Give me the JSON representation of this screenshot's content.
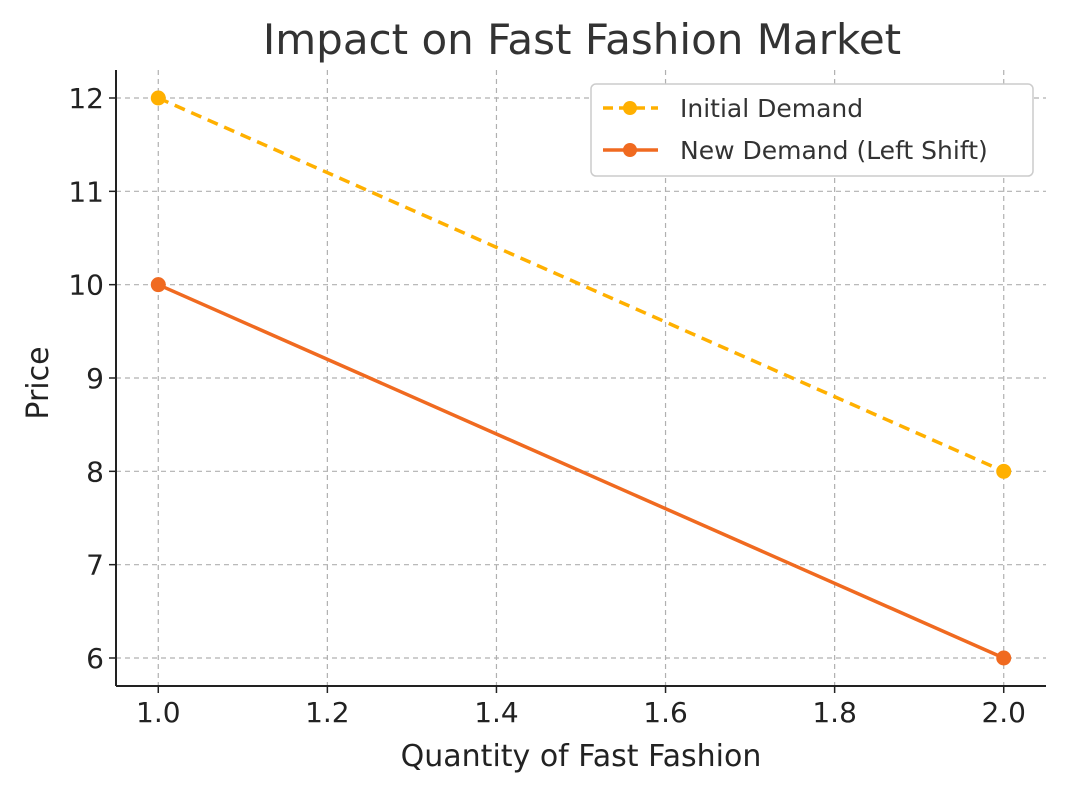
{
  "chart_data": {
    "type": "line",
    "title": "Impact on Fast Fashion Market",
    "xlabel": "Quantity of Fast Fashion",
    "ylabel": "Price",
    "xlim": [
      0.95,
      2.05
    ],
    "ylim": [
      5.7,
      12.3
    ],
    "xticks": [
      1.0,
      1.2,
      1.4,
      1.6,
      1.8,
      2.0
    ],
    "xtick_labels": [
      "1.0",
      "1.2",
      "1.4",
      "1.6",
      "1.8",
      "2.0"
    ],
    "yticks": [
      6,
      7,
      8,
      9,
      10,
      11,
      12
    ],
    "ytick_labels": [
      "6",
      "7",
      "8",
      "9",
      "10",
      "11",
      "12"
    ],
    "grid": true,
    "legend_position": "top-right",
    "series": [
      {
        "name": "Initial Demand",
        "x": [
          1.0,
          2.0
        ],
        "y": [
          12,
          8
        ],
        "color": "#FFB000",
        "line_style": "dashed",
        "marker": "circle"
      },
      {
        "name": "New Demand (Left Shift)",
        "x": [
          1.0,
          2.0
        ],
        "y": [
          10,
          6
        ],
        "color": "#F06A20",
        "line_style": "solid",
        "marker": "circle"
      }
    ]
  }
}
